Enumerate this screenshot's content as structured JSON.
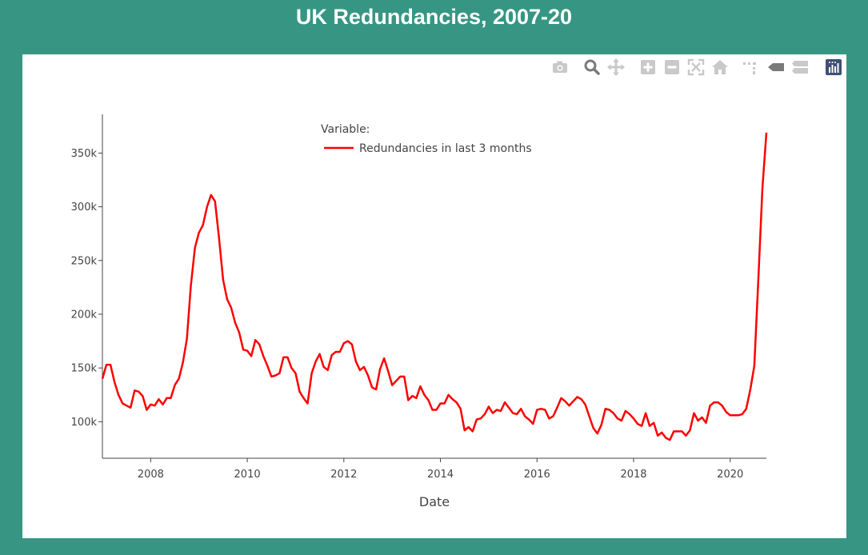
{
  "page": {
    "title": "UK Redundancies, 2007-20"
  },
  "modebar": {
    "icons": [
      "camera-icon",
      "zoom-icon",
      "pan-icon",
      "zoom-in-icon",
      "zoom-out-icon",
      "autoscale-icon",
      "home-icon",
      "spike-lines-icon",
      "hover-closest-icon",
      "hover-compare-icon",
      "plotly-logo-icon"
    ],
    "colors": {
      "inactive": "#c9c9c9",
      "active": "#7a7a7a",
      "logo": "#3f4f75"
    }
  },
  "chart_data": {
    "type": "line",
    "title": "",
    "xlabel": "Date",
    "ylabel": "",
    "xlim": [
      2007.0,
      2020.75
    ],
    "ylim": [
      66000,
      386000
    ],
    "x_ticks": [
      2008,
      2010,
      2012,
      2014,
      2016,
      2018,
      2020
    ],
    "x_tick_labels": [
      "2008",
      "2010",
      "2012",
      "2014",
      "2016",
      "2018",
      "2020"
    ],
    "y_ticks": [
      100000,
      150000,
      200000,
      250000,
      300000,
      350000
    ],
    "y_tick_labels": [
      "100k",
      "150k",
      "200k",
      "250k",
      "300k",
      "350k"
    ],
    "grid": false,
    "legend": {
      "title": "Variable:",
      "position": "top-center"
    },
    "series": [
      {
        "name": "Redundancies in last 3 months",
        "color": "#ff0000",
        "x": [
          2007.0,
          2007.083,
          2007.167,
          2007.25,
          2007.333,
          2007.417,
          2007.5,
          2007.583,
          2007.667,
          2007.75,
          2007.833,
          2007.917,
          2008.0,
          2008.083,
          2008.167,
          2008.25,
          2008.333,
          2008.417,
          2008.5,
          2008.583,
          2008.667,
          2008.75,
          2008.833,
          2008.917,
          2009.0,
          2009.083,
          2009.167,
          2009.25,
          2009.333,
          2009.417,
          2009.5,
          2009.583,
          2009.667,
          2009.75,
          2009.833,
          2009.917,
          2010.0,
          2010.083,
          2010.167,
          2010.25,
          2010.333,
          2010.417,
          2010.5,
          2010.583,
          2010.667,
          2010.75,
          2010.833,
          2010.917,
          2011.0,
          2011.083,
          2011.167,
          2011.25,
          2011.333,
          2011.417,
          2011.5,
          2011.583,
          2011.667,
          2011.75,
          2011.833,
          2011.917,
          2012.0,
          2012.083,
          2012.167,
          2012.25,
          2012.333,
          2012.417,
          2012.5,
          2012.583,
          2012.667,
          2012.75,
          2012.833,
          2012.917,
          2013.0,
          2013.083,
          2013.167,
          2013.25,
          2013.333,
          2013.417,
          2013.5,
          2013.583,
          2013.667,
          2013.75,
          2013.833,
          2013.917,
          2014.0,
          2014.083,
          2014.167,
          2014.25,
          2014.333,
          2014.417,
          2014.5,
          2014.583,
          2014.667,
          2014.75,
          2014.833,
          2014.917,
          2015.0,
          2015.083,
          2015.167,
          2015.25,
          2015.333,
          2015.417,
          2015.5,
          2015.583,
          2015.667,
          2015.75,
          2015.833,
          2015.917,
          2016.0,
          2016.083,
          2016.167,
          2016.25,
          2016.333,
          2016.417,
          2016.5,
          2016.583,
          2016.667,
          2016.75,
          2016.833,
          2016.917,
          2017.0,
          2017.083,
          2017.167,
          2017.25,
          2017.333,
          2017.417,
          2017.5,
          2017.583,
          2017.667,
          2017.75,
          2017.833,
          2017.917,
          2018.0,
          2018.083,
          2018.167,
          2018.25,
          2018.333,
          2018.417,
          2018.5,
          2018.583,
          2018.667,
          2018.75,
          2018.833,
          2018.917,
          2019.0,
          2019.083,
          2019.167,
          2019.25,
          2019.333,
          2019.417,
          2019.5,
          2019.583,
          2019.667,
          2019.75,
          2019.833,
          2019.917,
          2020.0,
          2020.083,
          2020.167,
          2020.25,
          2020.333,
          2020.417,
          2020.5,
          2020.583,
          2020.667,
          2020.75
        ],
        "y": [
          140000,
          153000,
          153000,
          137000,
          125000,
          117000,
          115000,
          113000,
          129000,
          128000,
          124000,
          111000,
          116000,
          115000,
          121000,
          116000,
          122000,
          122000,
          134000,
          140000,
          155000,
          177000,
          227000,
          262000,
          276000,
          283000,
          300000,
          311000,
          305000,
          270000,
          232000,
          214000,
          206000,
          192000,
          183000,
          167000,
          166000,
          161000,
          176000,
          172000,
          161000,
          152000,
          142000,
          143000,
          145000,
          160000,
          160000,
          150000,
          145000,
          128000,
          122000,
          117000,
          145000,
          156000,
          163000,
          151000,
          148000,
          162000,
          165000,
          165000,
          173000,
          175000,
          172000,
          156000,
          148000,
          151000,
          143000,
          132000,
          130000,
          149000,
          159000,
          147000,
          134000,
          138000,
          142000,
          142000,
          120000,
          124000,
          122000,
          133000,
          125000,
          120000,
          111000,
          111000,
          117000,
          117000,
          125000,
          121000,
          118000,
          112000,
          92000,
          95000,
          91000,
          102000,
          103000,
          107000,
          114000,
          108000,
          111000,
          110000,
          118000,
          113000,
          108000,
          107000,
          112000,
          105000,
          102000,
          98000,
          111000,
          112000,
          111000,
          103000,
          105000,
          113000,
          122000,
          119000,
          115000,
          119000,
          123000,
          121000,
          116000,
          105000,
          94000,
          89000,
          97000,
          112000,
          111000,
          108000,
          103000,
          101000,
          110000,
          107000,
          103000,
          98000,
          96000,
          108000,
          96000,
          99000,
          87000,
          90000,
          85000,
          83000,
          91000,
          91000,
          91000,
          87000,
          92000,
          108000,
          101000,
          104000,
          99000,
          115000,
          118000,
          118000,
          115000,
          109000,
          106000,
          106000,
          106000,
          107000,
          112000,
          130000,
          152000,
          232000,
          317000,
          369000
        ]
      }
    ]
  }
}
